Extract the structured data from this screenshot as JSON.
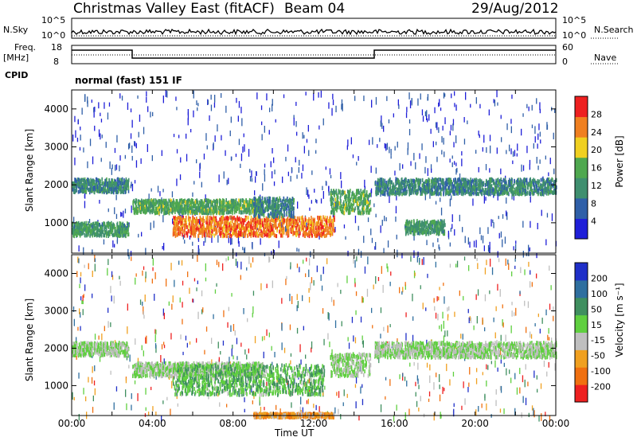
{
  "header": {
    "title": "Christmas Valley East (fitACF)",
    "beam": "Beam 04",
    "date": "29/Aug/2012"
  },
  "panels": {
    "nsky_label": "N.Sky",
    "nsearch_label": "N.Search",
    "nsky_ticks": [
      "10^5",
      "10^0"
    ],
    "nsearch_ticks": [
      "10^5",
      "10^0"
    ],
    "freq_label_1": "Freq.",
    "freq_label_2": "[MHz]",
    "freq_ticks": [
      "18",
      "8"
    ],
    "nave_label": "Nave",
    "nave_ticks": [
      "60",
      "0"
    ],
    "cpid_label": "CPID",
    "cpid_text": "normal (fast) 151 IF"
  },
  "axes": {
    "ylabel": "Slant Range [km]",
    "xlabel": "Time UT",
    "y_ticks": [
      "1000",
      "2000",
      "3000",
      "4000"
    ],
    "x_ticks": [
      "00:00",
      "04:00",
      "08:00",
      "12:00",
      "16:00",
      "20:00",
      "00:00"
    ]
  },
  "colorbars": {
    "power_label": "Power [dB]",
    "power_ticks": [
      "4",
      "8",
      "12",
      "16",
      "20",
      "24",
      "28"
    ],
    "power_colors": [
      "#1f1fd8",
      "#2f5fa8",
      "#3f8f6f",
      "#4fa84f",
      "#f0d020",
      "#f08020",
      "#ee2020"
    ],
    "velocity_label": "Velocity [m s⁻¹]",
    "velocity_ticks": [
      "200",
      "100",
      "50",
      "15",
      "-15",
      "-50",
      "-100",
      "-200"
    ],
    "velocity_colors": [
      "#1f2fc8",
      "#2f6f9f",
      "#3f8f5f",
      "#5fcf3f",
      "#bfbfbf",
      "#f0a020",
      "#f07010",
      "#ee2020"
    ]
  },
  "chart_data": [
    {
      "type": "heatmap",
      "title": "Power",
      "xlabel": "Time UT",
      "ylabel": "Slant Range [km]",
      "xlim": [
        0,
        24
      ],
      "ylim": [
        200,
        4500
      ],
      "colorbar_label": "Power [dB]",
      "colorbar_range": [
        0,
        30
      ],
      "regions": [
        {
          "t": [
            0,
            2.8
          ],
          "range": [
            1850,
            2200
          ],
          "level": 10
        },
        {
          "t": [
            0,
            2.8
          ],
          "range": [
            700,
            1050
          ],
          "level": 12
        },
        {
          "t": [
            3,
            9.5
          ],
          "range": [
            1300,
            1650
          ],
          "level": 14
        },
        {
          "t": [
            5,
            13
          ],
          "range": [
            700,
            1200
          ],
          "level": 24
        },
        {
          "t": [
            9,
            11
          ],
          "range": [
            1200,
            1700
          ],
          "level": 10
        },
        {
          "t": [
            12.8,
            14.8
          ],
          "range": [
            1300,
            1900
          ],
          "level": 14
        },
        {
          "t": [
            15,
            24
          ],
          "range": [
            1800,
            2200
          ],
          "level": 10
        },
        {
          "t": [
            16.5,
            18.5
          ],
          "range": [
            750,
            1100
          ],
          "level": 12
        }
      ]
    },
    {
      "type": "heatmap",
      "title": "Velocity",
      "xlabel": "Time UT",
      "ylabel": "Slant Range [km]",
      "xlim": [
        0,
        24
      ],
      "ylim": [
        200,
        4500
      ],
      "colorbar_label": "Velocity [m s-1]",
      "colorbar_range": [
        -200,
        200
      ],
      "regions": [
        {
          "t": [
            0,
            2.8
          ],
          "range": [
            1850,
            2200
          ],
          "level": 0
        },
        {
          "t": [
            3,
            9.5
          ],
          "range": [
            1300,
            1650
          ],
          "level": 0
        },
        {
          "t": [
            5,
            12.5
          ],
          "range": [
            800,
            1600
          ],
          "level": 40
        },
        {
          "t": [
            12.8,
            14.8
          ],
          "range": [
            1300,
            1900
          ],
          "level": 0
        },
        {
          "t": [
            15,
            24
          ],
          "range": [
            1800,
            2200
          ],
          "level": 0
        },
        {
          "t": [
            9,
            13
          ],
          "range": [
            200,
            300
          ],
          "level": -80
        }
      ]
    }
  ]
}
